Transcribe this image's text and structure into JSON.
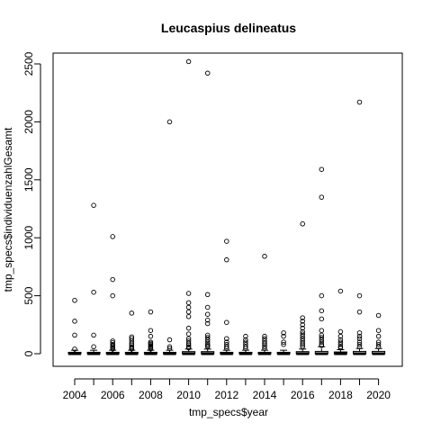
{
  "chart_data": {
    "type": "boxplot",
    "title": "Leucaspius delineatus",
    "xlabel": "tmp_specs$year",
    "ylabel": "tmp_specs$individuenzahlGesamt",
    "ylim": [
      0,
      2500
    ],
    "y_ticks": [
      0,
      500,
      1000,
      1500,
      2000,
      2500
    ],
    "x_tick_labels": [
      "2004",
      "2006",
      "2008",
      "2010",
      "2012",
      "2014",
      "2016",
      "2018",
      "2020"
    ],
    "categories": [
      "2004",
      "2005",
      "2006",
      "2007",
      "2008",
      "2009",
      "2010",
      "2011",
      "2012",
      "2013",
      "2014",
      "2015",
      "2016",
      "2017",
      "2018",
      "2019",
      "2020"
    ],
    "boxes": [
      {
        "year": "2004",
        "q3": 12,
        "whisker_high": 30,
        "outliers": [
          460,
          280,
          160,
          40
        ]
      },
      {
        "year": "2005",
        "q3": 12,
        "whisker_high": 30,
        "outliers": [
          1280,
          530,
          160,
          60
        ]
      },
      {
        "year": "2006",
        "q3": 12,
        "whisker_high": 30,
        "outliers": [
          1010,
          640,
          500,
          110,
          95,
          80,
          70,
          60,
          50,
          40
        ]
      },
      {
        "year": "2007",
        "q3": 12,
        "whisker_high": 30,
        "outliers": [
          350,
          145,
          130,
          110,
          90,
          75,
          60,
          50,
          40
        ]
      },
      {
        "year": "2008",
        "q3": 12,
        "whisker_high": 30,
        "outliers": [
          360,
          200,
          150,
          100,
          90,
          80,
          70,
          60,
          50,
          40
        ]
      },
      {
        "year": "2009",
        "q3": 12,
        "whisker_high": 30,
        "outliers": [
          2000,
          120,
          60,
          45
        ]
      },
      {
        "year": "2010",
        "q3": 18,
        "whisker_high": 40,
        "outliers": [
          2520,
          520,
          440,
          400,
          360,
          320,
          220,
          170,
          130,
          110,
          90,
          75,
          60,
          50
        ]
      },
      {
        "year": "2011",
        "q3": 18,
        "whisker_high": 40,
        "outliers": [
          2420,
          510,
          400,
          340,
          290,
          260,
          160,
          140,
          120,
          100,
          80,
          70,
          60
        ]
      },
      {
        "year": "2012",
        "q3": 12,
        "whisker_high": 30,
        "outliers": [
          970,
          810,
          270,
          130,
          100,
          80,
          60,
          45
        ]
      },
      {
        "year": "2013",
        "q3": 12,
        "whisker_high": 30,
        "outliers": [
          150,
          120,
          100,
          80,
          60,
          45
        ]
      },
      {
        "year": "2014",
        "q3": 12,
        "whisker_high": 30,
        "outliers": [
          840,
          150,
          130,
          110,
          90,
          75,
          60,
          45
        ]
      },
      {
        "year": "2015",
        "q3": 12,
        "whisker_high": 30,
        "outliers": [
          180,
          150,
          100,
          80
        ]
      },
      {
        "year": "2016",
        "q3": 18,
        "whisker_high": 40,
        "outliers": [
          1120,
          310,
          280,
          250,
          220,
          190,
          170,
          150,
          130,
          110,
          90,
          75,
          60
        ]
      },
      {
        "year": "2017",
        "q3": 20,
        "whisker_high": 60,
        "outliers": [
          1590,
          1350,
          500,
          370,
          300,
          200,
          160,
          140,
          120,
          100,
          80,
          70
        ]
      },
      {
        "year": "2018",
        "q3": 15,
        "whisker_high": 35,
        "outliers": [
          540,
          190,
          150,
          120,
          100,
          80,
          60,
          50
        ]
      },
      {
        "year": "2019",
        "q3": 20,
        "whisker_high": 45,
        "outliers": [
          2170,
          500,
          360,
          180,
          150,
          130,
          100,
          80,
          60
        ]
      },
      {
        "year": "2020",
        "q3": 20,
        "whisker_high": 45,
        "outliers": [
          330,
          200,
          150,
          100,
          80,
          60
        ]
      }
    ],
    "grid": false,
    "legend": "none"
  }
}
